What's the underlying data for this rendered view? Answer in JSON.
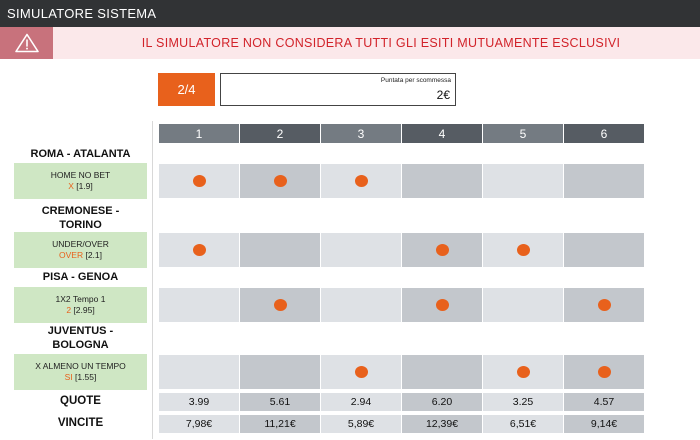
{
  "header": {
    "title": "SIMULATORE SISTEMA"
  },
  "warning": {
    "icon": "warning-triangle-icon",
    "text": "IL SIMULATORE NON CONSIDERA TUTTI GLI ESITI MUTUAMENTE ESCLUSIVI"
  },
  "system": {
    "label": "2/4"
  },
  "stake": {
    "label": "Puntata per scommessa",
    "value": "2€"
  },
  "columns": [
    "1",
    "2",
    "3",
    "4",
    "5",
    "6"
  ],
  "matches": [
    {
      "name_lines": [
        "ROMA - ATALANTA"
      ],
      "bet_type": "HOME NO BET",
      "selection": "X",
      "odds": "[1.9]",
      "picked": [
        true,
        true,
        true,
        false,
        false,
        false
      ]
    },
    {
      "name_lines": [
        "CREMONESE -",
        "TORINO"
      ],
      "bet_type": "UNDER/OVER",
      "selection": "OVER",
      "odds": "[2.1]",
      "picked": [
        true,
        false,
        false,
        true,
        true,
        false
      ]
    },
    {
      "name_lines": [
        "PISA - GENOA"
      ],
      "bet_type": "1X2 Tempo 1",
      "selection": "2",
      "odds": "[2.95]",
      "picked": [
        false,
        true,
        false,
        true,
        false,
        true
      ]
    },
    {
      "name_lines": [
        "JUVENTUS -",
        "BOLOGNA"
      ],
      "bet_type": "X ALMENO UN TEMPO",
      "selection": "SI",
      "odds": "[1.55]",
      "picked": [
        false,
        false,
        true,
        false,
        true,
        true
      ]
    }
  ],
  "quote": {
    "label": "QUOTE",
    "values": [
      "3.99",
      "5.61",
      "2.94",
      "6.20",
      "3.25",
      "4.57"
    ]
  },
  "vincite": {
    "label": "VINCITE",
    "values": [
      "7,98€",
      "11,21€",
      "5,89€",
      "12,39€",
      "6,51€",
      "9,14€"
    ]
  },
  "colors": {
    "accent": "#e8611c",
    "header_bg": "#313335",
    "warning_text": "#d2232a",
    "bet_bg": "#cfe7c4"
  }
}
